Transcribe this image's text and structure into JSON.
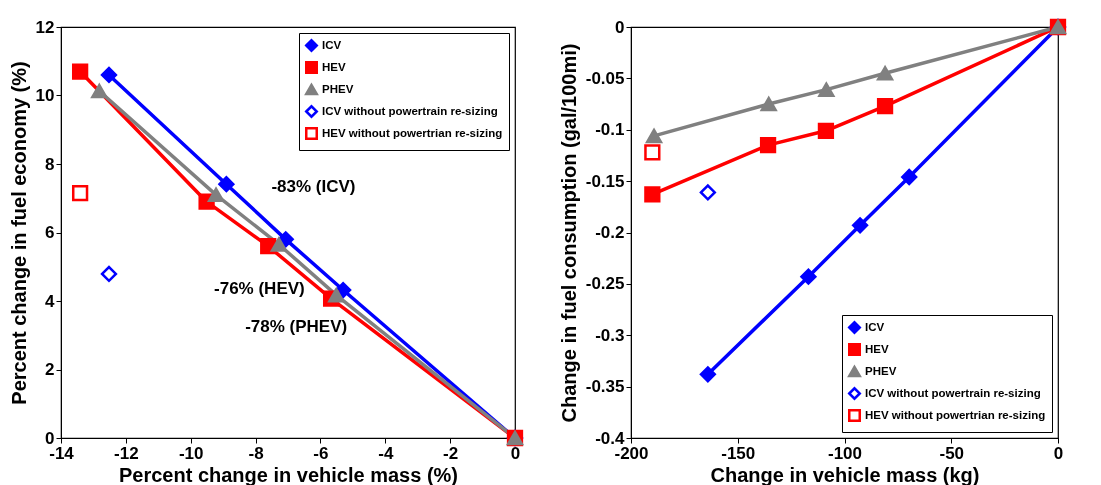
{
  "chart_data": [
    {
      "type": "line",
      "xlabel": "Percent change in vehicle mass (%)",
      "ylabel": "Percent change in fuel economy (%)",
      "xlim": [
        -14,
        0
      ],
      "xticks": [
        -14,
        -12,
        -10,
        -8,
        -6,
        -4,
        -2,
        0
      ],
      "ylim": [
        0,
        12
      ],
      "yticks": [
        0,
        2,
        4,
        6,
        8,
        10,
        12
      ],
      "grid": false,
      "legend": "top right",
      "series": [
        {
          "name": "ICV",
          "color": "#0000ff",
          "marker": "diamond",
          "x": [
            -12.52,
            -8.9,
            -7.07,
            -5.3,
            0
          ],
          "values": [
            10.6,
            7.41,
            5.8,
            4.32,
            0
          ]
        },
        {
          "name": "HEV",
          "color": "#ff0000",
          "marker": "square",
          "x": [
            -13.41,
            -9.51,
            -7.61,
            -5.67,
            0
          ],
          "values": [
            10.7,
            6.9,
            5.6,
            4.07,
            0
          ]
        },
        {
          "name": "PHEV",
          "color": "#808080",
          "marker": "triangle",
          "x": [
            -12.82,
            -9.22,
            -7.28,
            -5.51,
            0
          ],
          "values": [
            10.13,
            7.1,
            5.65,
            4.17,
            0
          ]
        },
        {
          "name": "ICV without powertrain re-sizing",
          "type": "scatter",
          "color": "#0000ff",
          "marker": "diamond",
          "x": [
            -12.52
          ],
          "values": [
            4.79
          ]
        },
        {
          "name": "HEV without powertrian re-sizing",
          "type": "scatter",
          "color": "#ff0000",
          "marker": "square",
          "x": [
            -13.41
          ],
          "values": [
            7.15
          ]
        }
      ],
      "annotations": [
        "-83% (ICV)",
        "-76% (HEV)",
        "-78% (PHEV)"
      ]
    },
    {
      "type": "line",
      "xlabel": "Change in vehicle mass (kg)",
      "ylabel": "Change in fuel consumption (gal/100mi)",
      "xlim": [
        -200,
        0
      ],
      "xticks": [
        -200,
        -150,
        -100,
        -50,
        0
      ],
      "ylim": [
        -0.4,
        0
      ],
      "yticks": [
        -0.4,
        -0.35,
        -0.3,
        -0.25,
        -0.2,
        -0.15,
        -0.1,
        -0.05,
        0
      ],
      "grid": false,
      "legend": "bottom right",
      "series": [
        {
          "name": "ICV",
          "color": "#0000ff",
          "marker": "diamond",
          "x": [
            -164,
            -116.9,
            -92.7,
            -69.7,
            0
          ],
          "values": [
            -0.338,
            -0.243,
            -0.193,
            -0.146,
            0
          ]
        },
        {
          "name": "HEV",
          "color": "#ff0000",
          "marker": "square",
          "x": [
            -190,
            -135.8,
            -108.7,
            -81,
            0
          ],
          "values": [
            -0.163,
            -0.115,
            -0.101,
            -0.077,
            0
          ]
        },
        {
          "name": "PHEV",
          "color": "#808080",
          "marker": "triangle",
          "x": [
            -189.2,
            -135.5,
            -108.5,
            -81,
            0
          ],
          "values": [
            -0.106,
            -0.075,
            -0.061,
            -0.045,
            0
          ]
        },
        {
          "name": "ICV without powertrain re-sizing",
          "type": "scatter",
          "color": "#0000ff",
          "marker": "diamond",
          "x": [
            -164
          ],
          "values": [
            -0.161
          ]
        },
        {
          "name": "HEV without powertrian re-sizing",
          "type": "scatter",
          "color": "#ff0000",
          "marker": "square",
          "x": [
            -190
          ],
          "values": [
            -0.122
          ]
        }
      ]
    }
  ]
}
